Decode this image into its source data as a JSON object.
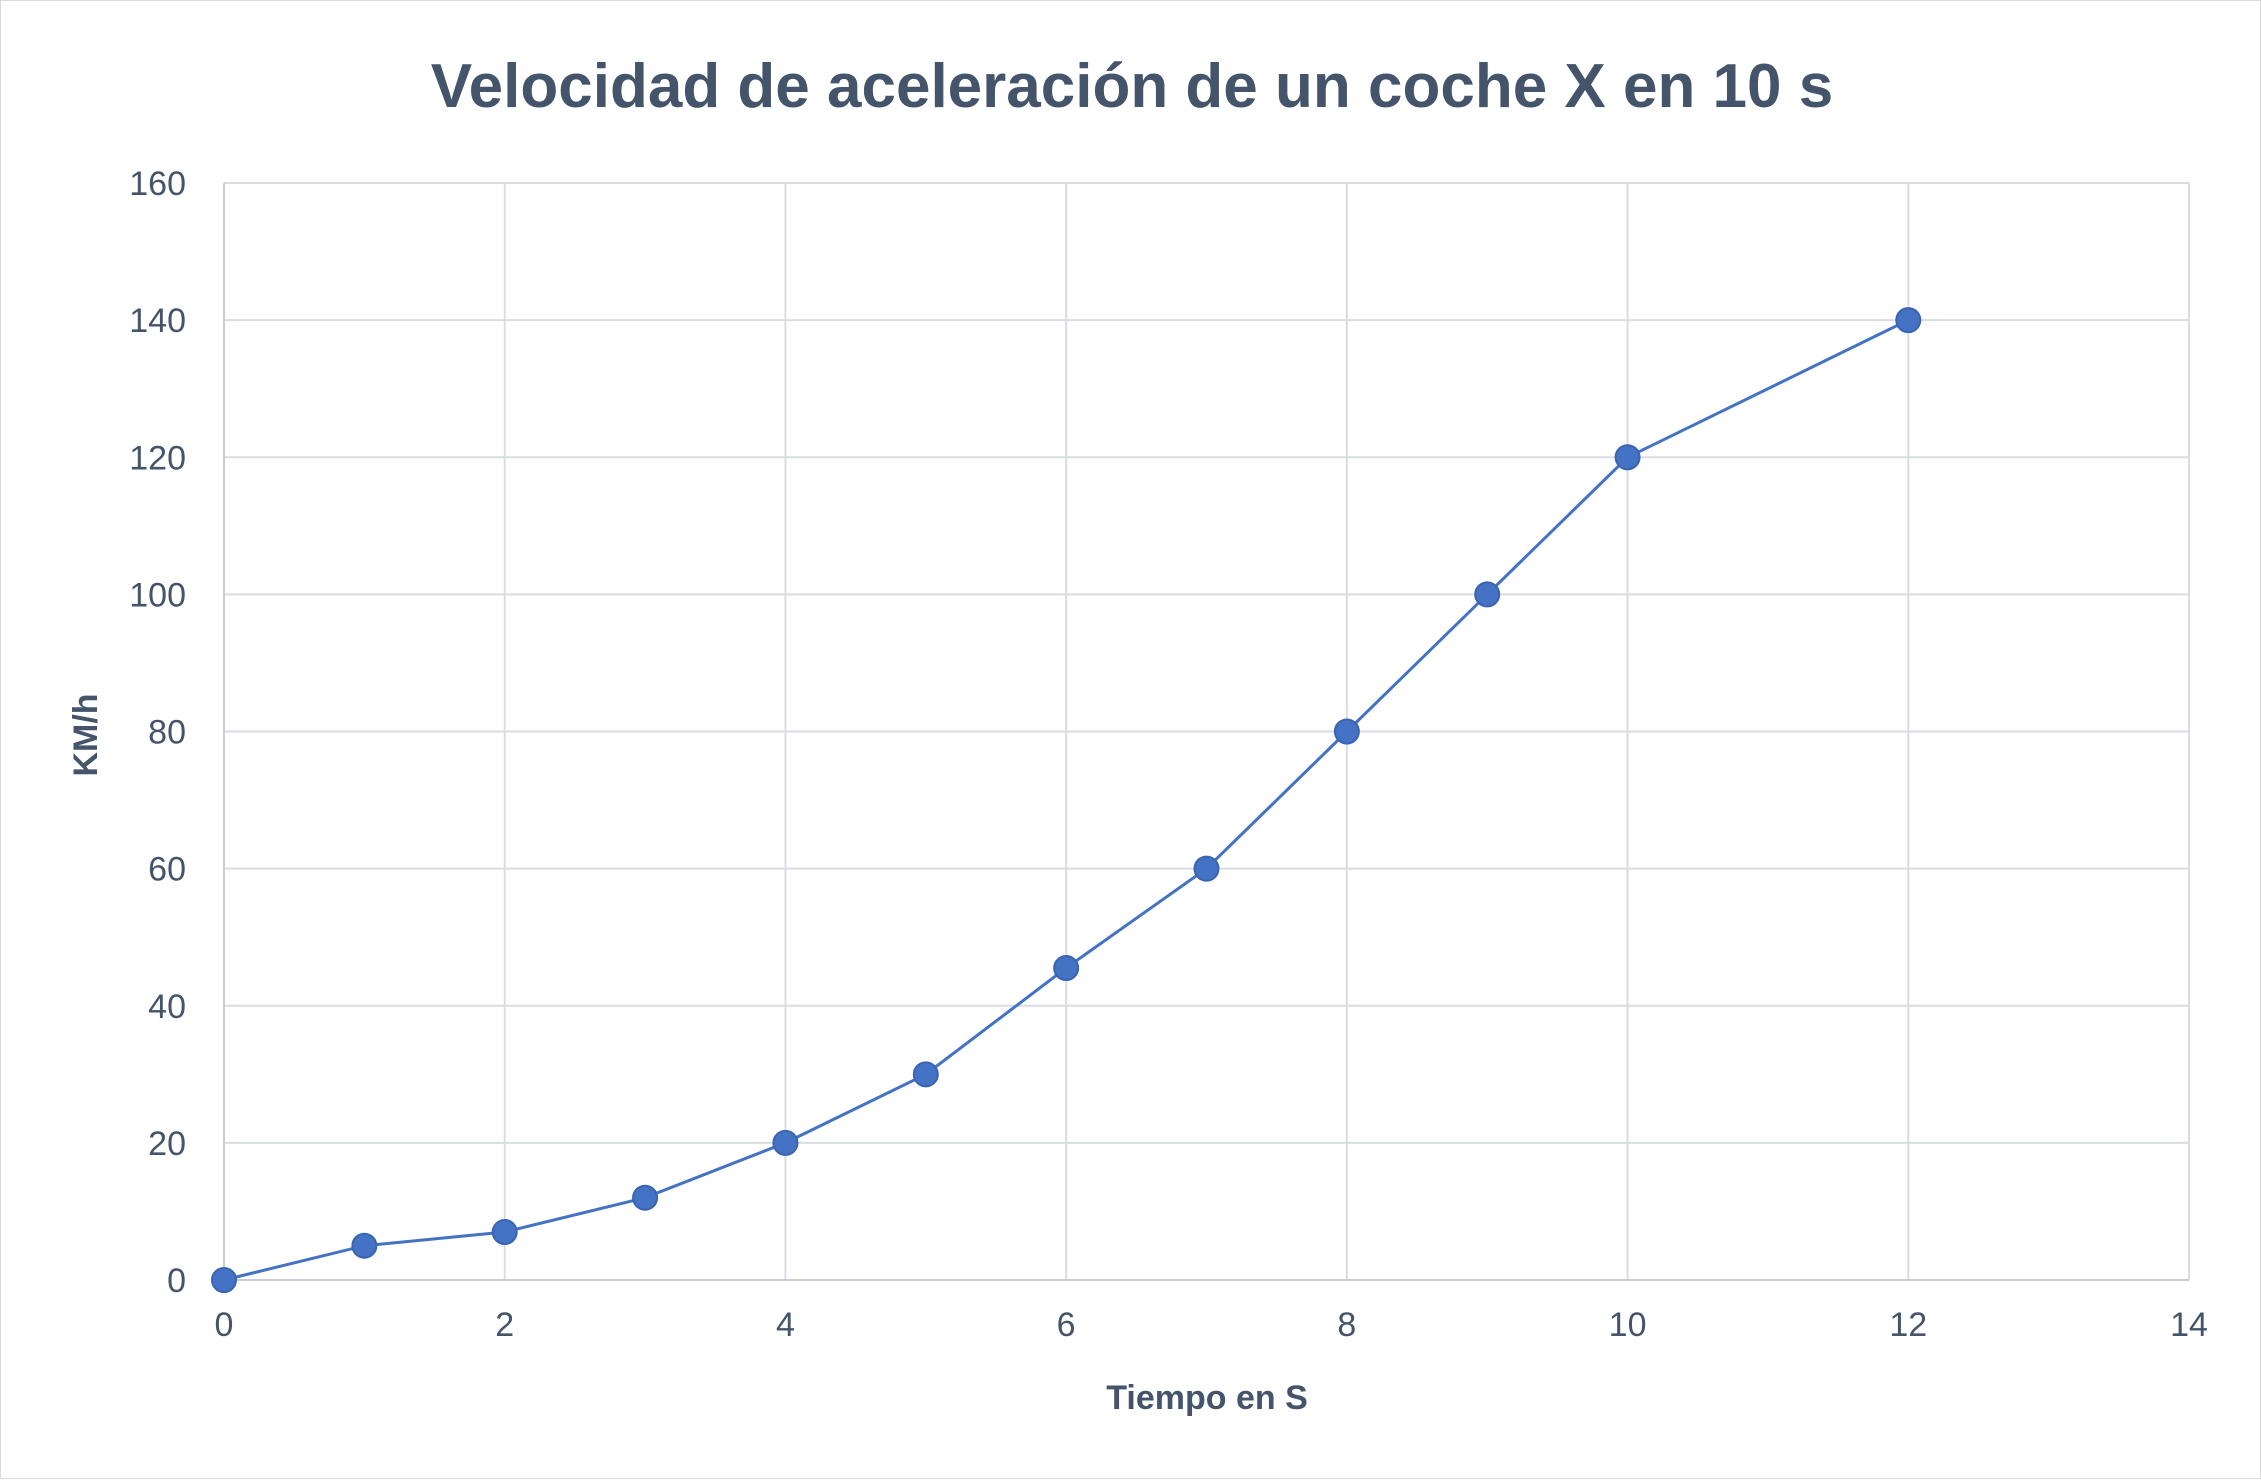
{
  "chart_data": {
    "type": "scatter",
    "mode": "lines+markers",
    "title": "Velocidad de aceleración de un coche X en 10 s",
    "xlabel": "Tiempo en S",
    "ylabel": "KM/h",
    "xlim": [
      0,
      14
    ],
    "ylim": [
      0,
      160
    ],
    "xticks": [
      0,
      2,
      4,
      6,
      8,
      10,
      12,
      14
    ],
    "yticks": [
      0,
      20,
      40,
      60,
      80,
      100,
      120,
      140,
      160
    ],
    "grid": true,
    "legend": "none",
    "series": [
      {
        "color": "#4472c4",
        "x": [
          0,
          1,
          2,
          3,
          4,
          5,
          6,
          7,
          8,
          9,
          10,
          12
        ],
        "y": [
          0,
          5,
          7,
          12,
          20,
          30,
          45.5,
          60,
          80,
          100,
          120,
          140
        ]
      }
    ]
  }
}
